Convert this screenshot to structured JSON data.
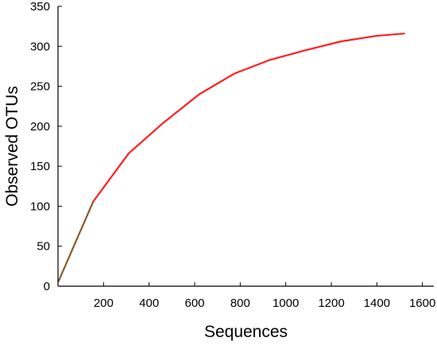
{
  "chart_data": {
    "type": "line",
    "xlabel": "Sequences",
    "ylabel": "Observed OTUs",
    "xlim": [
      0,
      1650
    ],
    "ylim": [
      0,
      350
    ],
    "xticks": [
      200,
      400,
      600,
      800,
      1000,
      1200,
      1400,
      1600
    ],
    "yticks": [
      0,
      50,
      100,
      150,
      200,
      250,
      300,
      350
    ],
    "grid": false,
    "legend": "none",
    "colors": {
      "line": "#ff1f1f",
      "line_start": "#8b5a2b",
      "axis": "#000000"
    },
    "series": [
      {
        "x": [
          2,
          155,
          310,
          465,
          620,
          775,
          930,
          1085,
          1240,
          1395,
          1520
        ],
        "y": [
          6,
          106,
          166,
          205,
          240,
          266,
          283,
          295,
          306,
          313,
          316
        ]
      }
    ]
  }
}
